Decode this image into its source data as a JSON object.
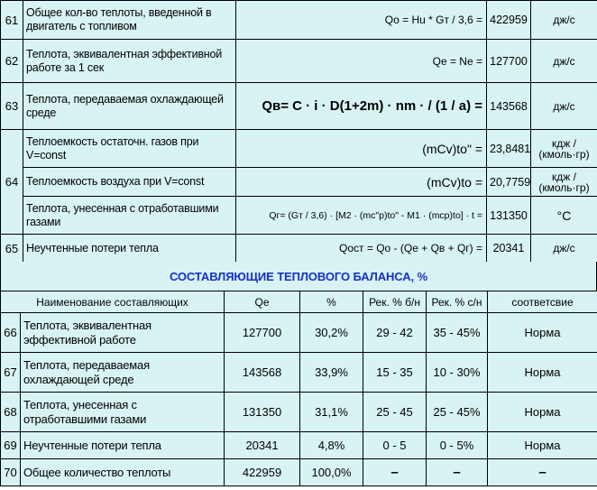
{
  "top_rows": [
    {
      "num": "61",
      "desc": "Общее кол-во теплоты, введенной в двигатель с топливом",
      "formula": "Qo = Hu * Gт / 3,6 =",
      "value": "422959",
      "unit": "дж/с"
    },
    {
      "num": "62",
      "desc": "Теплота, эквивалентная эффективной работе за 1 сек",
      "formula": "Qe = Ne =",
      "value": "127700",
      "unit": "дж/с"
    },
    {
      "num": "63",
      "desc": "Теплота, передаваемая охлаждающей среде",
      "formula": "Qв= C · i · D(1+2m) · nm · / (1 / a) =",
      "value": "143568",
      "unit": "дж/с"
    },
    {
      "num": "64",
      "desc": "Теплоемкость остаточн. газов при V=const",
      "formula": "(mCv)to\" =",
      "value": "23,8481",
      "unit": "кдж / (кмоль·гр)"
    },
    {
      "num": "",
      "desc": "Теплоемкость воздуха при V=const",
      "formula": "(mCv)to =",
      "value": "20,7759",
      "unit": "кдж / (кмоль·гр)"
    },
    {
      "num": "",
      "desc": "Теплота, унесенная с отработавшими газами",
      "formula": "Qг= (Gт / 3,6) · [M2 · (mc\"p)to\" - M1 · (mcp)to] · t =",
      "value": "131350",
      "unit": "°C"
    },
    {
      "num": "65",
      "desc": "Неучтенные потери тепла",
      "formula": "Qост = Qo - (Qe + Qв + Qг) =",
      "value": "20341",
      "unit": "дж/с"
    }
  ],
  "banner": "СОСТАВЛЯЮЩИЕ ТЕПЛОВОГО БАЛАНСА, %",
  "headers": [
    "Наименование составляющих",
    "Qe",
    "%",
    "Рек. % б/н",
    "Рек. % с/н",
    "соответсвие"
  ],
  "bottom_rows": [
    {
      "num": "66",
      "name": "Теплота, эквивалентная эффективной работе",
      "q": "127700",
      "pct": "30,2%",
      "rec_bn": "29 - 42",
      "rec_sn": "35 - 45%",
      "status": "Норма"
    },
    {
      "num": "67",
      "name": "Теплота, передаваемая охлаждающей среде",
      "q": "143568",
      "pct": "33,9%",
      "rec_bn": "15 - 35",
      "rec_sn": "10 - 30%",
      "status": "Норма"
    },
    {
      "num": "68",
      "name": "Теплота, унесенная с отработавшими газами",
      "q": "131350",
      "pct": "31,1%",
      "rec_bn": "25 - 45",
      "rec_sn": "25 - 45%",
      "status": "Норма"
    },
    {
      "num": "69",
      "name": "Неучтенные потери тепла",
      "q": "20341",
      "pct": "4,8%",
      "rec_bn": "0 - 5",
      "rec_sn": "0 - 5%",
      "status": "Норма"
    },
    {
      "num": "70",
      "name": "Общее количество теплоты",
      "q": "422959",
      "pct": "100,0%",
      "rec_bn": "–",
      "rec_sn": "–",
      "status": "–"
    }
  ]
}
